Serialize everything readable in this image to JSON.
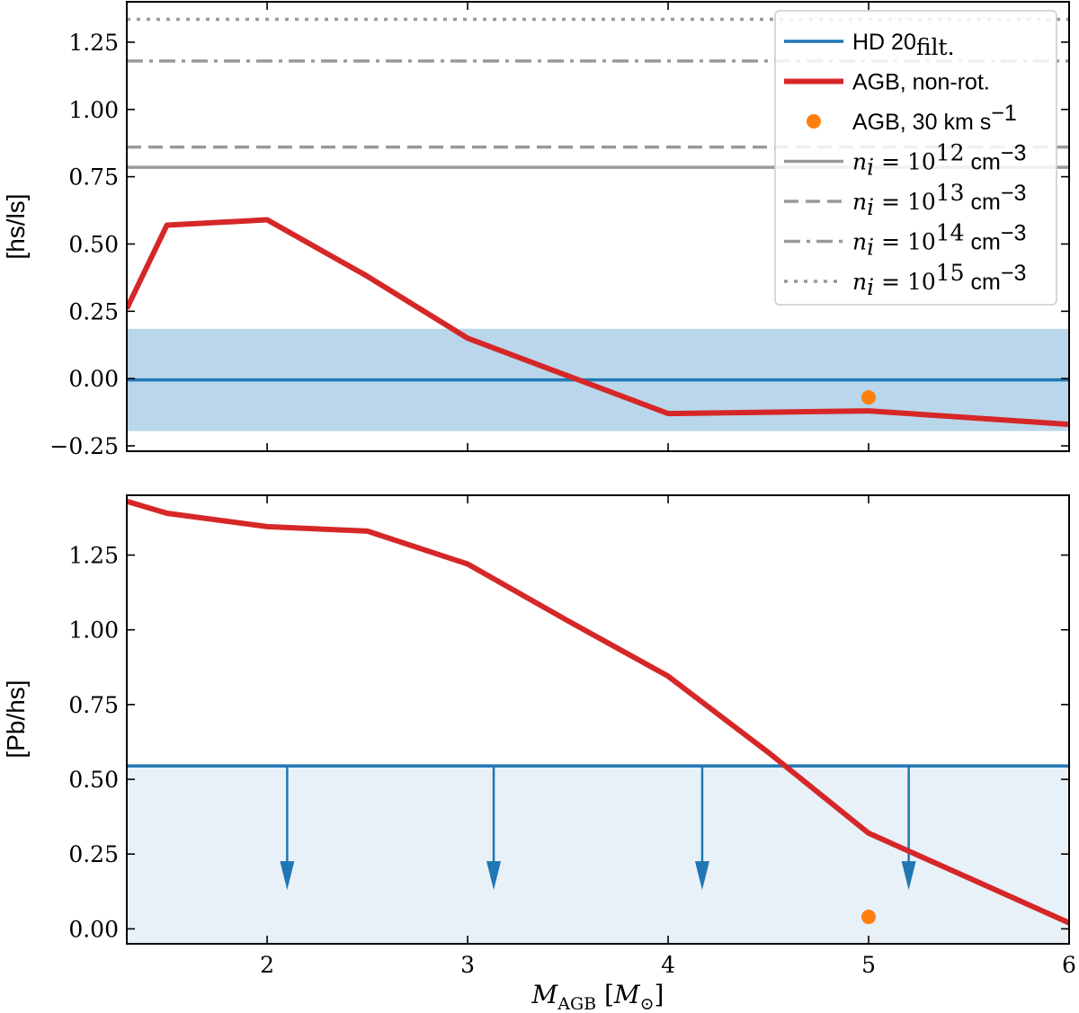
{
  "chart_data": [
    {
      "type": "line",
      "panel": "top",
      "ylabel": "[hs/ls]",
      "xlabel": "",
      "xlim": [
        1.3,
        6.0
      ],
      "ylim": [
        -0.27,
        1.4
      ],
      "x_ticks": [
        2,
        3,
        4,
        5,
        6
      ],
      "y_ticks": [
        -0.25,
        0.0,
        0.25,
        0.5,
        0.75,
        1.0,
        1.25
      ],
      "y_tick_labels": [
        "−0.25",
        "0.00",
        "0.25",
        "0.50",
        "0.75",
        "1.00",
        "1.25"
      ],
      "series": [
        {
          "name": "AGB, non-rot.",
          "color": "#d62728",
          "x": [
            1.3,
            1.5,
            2.0,
            2.5,
            3.0,
            3.5,
            4.0,
            4.5,
            5.0,
            5.5,
            6.0
          ],
          "y": [
            0.26,
            0.57,
            0.59,
            0.38,
            0.15,
            0.01,
            -0.13,
            -0.125,
            -0.12,
            -0.145,
            -0.17
          ]
        }
      ],
      "points": [
        {
          "name": "AGB, 30 km s-1",
          "color": "#ff7f0e",
          "x": 5.0,
          "y": -0.07
        }
      ],
      "observation": {
        "name": "HD 20 filt.",
        "color": "#1f77b4",
        "value": -0.005,
        "band": [
          -0.195,
          0.185
        ]
      },
      "reference_lines": [
        {
          "name": "n_i = 10^12 cm^-3",
          "value": 0.785,
          "style": "solid",
          "color": "#999999"
        },
        {
          "name": "n_i = 10^13 cm^-3",
          "value": 0.86,
          "style": "dashed",
          "color": "#999999"
        },
        {
          "name": "n_i = 10^14 cm^-3",
          "value": 1.18,
          "style": "dashdot",
          "color": "#999999"
        },
        {
          "name": "n_i = 10^15 cm^-3",
          "value": 1.335,
          "style": "dotted",
          "color": "#999999"
        }
      ],
      "legend": {
        "placement": "top-right",
        "entries": [
          {
            "kind": "line",
            "style": "solid",
            "color": "#1f77b4",
            "width": "thin",
            "label": "HD 20",
            "sub": "filt."
          },
          {
            "kind": "line",
            "style": "solid",
            "color": "#d62728",
            "width": "thick",
            "label": "AGB, non-rot."
          },
          {
            "kind": "dot",
            "color": "#ff7f0e",
            "label": "AGB, 30 km s",
            "sup": "−1"
          },
          {
            "kind": "line",
            "style": "solid",
            "color": "#999999",
            "math": "n",
            "math_sub": "i",
            "eq": " = 10",
            "exp": "12",
            "unit": " cm",
            "unit_sup": "−3"
          },
          {
            "kind": "line",
            "style": "dashed",
            "color": "#999999",
            "math": "n",
            "math_sub": "i",
            "eq": " = 10",
            "exp": "13",
            "unit": " cm",
            "unit_sup": "−3"
          },
          {
            "kind": "line",
            "style": "dashdot",
            "color": "#999999",
            "math": "n",
            "math_sub": "i",
            "eq": " = 10",
            "exp": "14",
            "unit": " cm",
            "unit_sup": "−3"
          },
          {
            "kind": "line",
            "style": "dotted",
            "color": "#999999",
            "math": "n",
            "math_sub": "i",
            "eq": " = 10",
            "exp": "15",
            "unit": " cm",
            "unit_sup": "−3"
          }
        ]
      }
    },
    {
      "type": "line",
      "panel": "bottom",
      "ylabel": "[Pb/hs]",
      "xlabel": "M_AGB [M_sun]",
      "xlim": [
        1.3,
        6.0
      ],
      "ylim": [
        -0.05,
        1.45
      ],
      "x_ticks": [
        2,
        3,
        4,
        5,
        6
      ],
      "x_tick_labels": [
        "2",
        "3",
        "4",
        "5",
        "6"
      ],
      "y_ticks": [
        0.0,
        0.25,
        0.5,
        0.75,
        1.0,
        1.25
      ],
      "y_tick_labels": [
        "0.00",
        "0.25",
        "0.50",
        "0.75",
        "1.00",
        "1.25"
      ],
      "series": [
        {
          "name": "AGB, non-rot.",
          "color": "#d62728",
          "x": [
            1.3,
            1.5,
            2.0,
            2.5,
            3.0,
            3.5,
            4.0,
            4.5,
            5.0,
            5.5,
            6.0
          ],
          "y": [
            1.43,
            1.39,
            1.345,
            1.33,
            1.22,
            1.03,
            0.845,
            0.59,
            0.32,
            0.17,
            0.02
          ]
        }
      ],
      "points": [
        {
          "name": "AGB, 30 km s-1",
          "color": "#ff7f0e",
          "x": 5.0,
          "y": 0.04
        }
      ],
      "observation": {
        "name": "HD 20 filt. upper limit",
        "color": "#1f77b4",
        "value": 0.545,
        "upper_limit": true,
        "arrow_x": [
          2.1,
          3.13,
          4.17,
          5.2
        ],
        "arrow_tip": 0.13
      }
    }
  ]
}
